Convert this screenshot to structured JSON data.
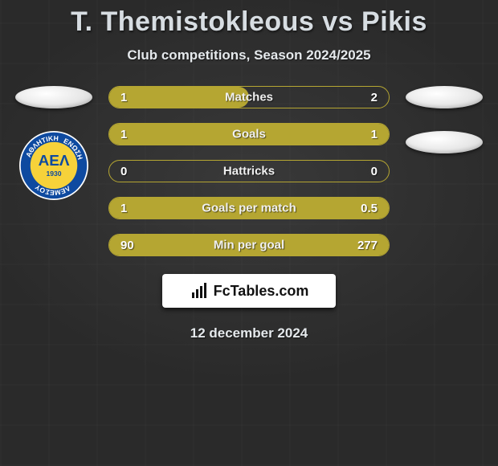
{
  "title": "T. Themistokleous vs Pikis",
  "subtitle": "Club competitions, Season 2024/2025",
  "date": "12 december 2024",
  "brand": "FcTables.com",
  "colors": {
    "accent": "#b5a632",
    "accent_border": "#b5a632",
    "row_bg": "transparent"
  },
  "badge": {
    "ring": "#0e4aa0",
    "inner": "#f6d23a",
    "year": "1930",
    "top": "ΑΘΛΗΤΙΚΗ",
    "bottom": "ΛΕΜΕΣΟΥ",
    "right": "ΕΝΩΣΗ"
  },
  "rows": [
    {
      "label": "Matches",
      "left": "1",
      "right": "2",
      "left_pct": 50,
      "right_pct": 0,
      "fill_side": "left"
    },
    {
      "label": "Goals",
      "left": "1",
      "right": "1",
      "left_pct": 100,
      "right_pct": 0,
      "fill_side": "left"
    },
    {
      "label": "Hattricks",
      "left": "0",
      "right": "0",
      "left_pct": 0,
      "right_pct": 0,
      "fill_side": "left"
    },
    {
      "label": "Goals per match",
      "left": "1",
      "right": "0.5",
      "left_pct": 100,
      "right_pct": 0,
      "fill_side": "left"
    },
    {
      "label": "Min per goal",
      "left": "90",
      "right": "277",
      "left_pct": 0,
      "right_pct": 100,
      "fill_side": "right"
    }
  ]
}
